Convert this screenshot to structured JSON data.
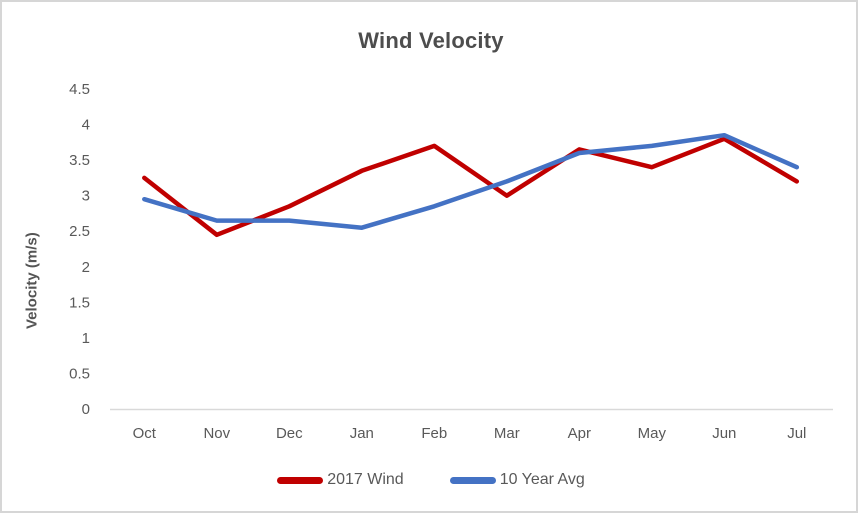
{
  "chart_data": {
    "type": "line",
    "title": "Wind Velocity",
    "xlabel": "",
    "ylabel": "Velocity (m/s)",
    "categories": [
      "Oct",
      "Nov",
      "Dec",
      "Jan",
      "Feb",
      "Mar",
      "Apr",
      "May",
      "Jun",
      "Jul"
    ],
    "series": [
      {
        "name": "2017 Wind",
        "color": "#c00000",
        "values": [
          3.25,
          2.45,
          2.85,
          3.35,
          3.7,
          3.0,
          3.65,
          3.4,
          3.8,
          3.2
        ]
      },
      {
        "name": "10 Year Avg",
        "color": "#4472c4",
        "values": [
          2.95,
          2.65,
          2.65,
          2.55,
          2.85,
          3.2,
          3.6,
          3.7,
          3.85,
          3.4
        ]
      }
    ],
    "ylim": [
      0,
      4.5
    ],
    "ytick_step": 0.5,
    "grid": false,
    "legend_position": "bottom"
  },
  "colors": {
    "axis_line": "#d9d9d9",
    "tick_text": "#595959",
    "title_text": "#4d4d4d",
    "frame_border": "#d6d6d6",
    "background": "#ffffff"
  }
}
